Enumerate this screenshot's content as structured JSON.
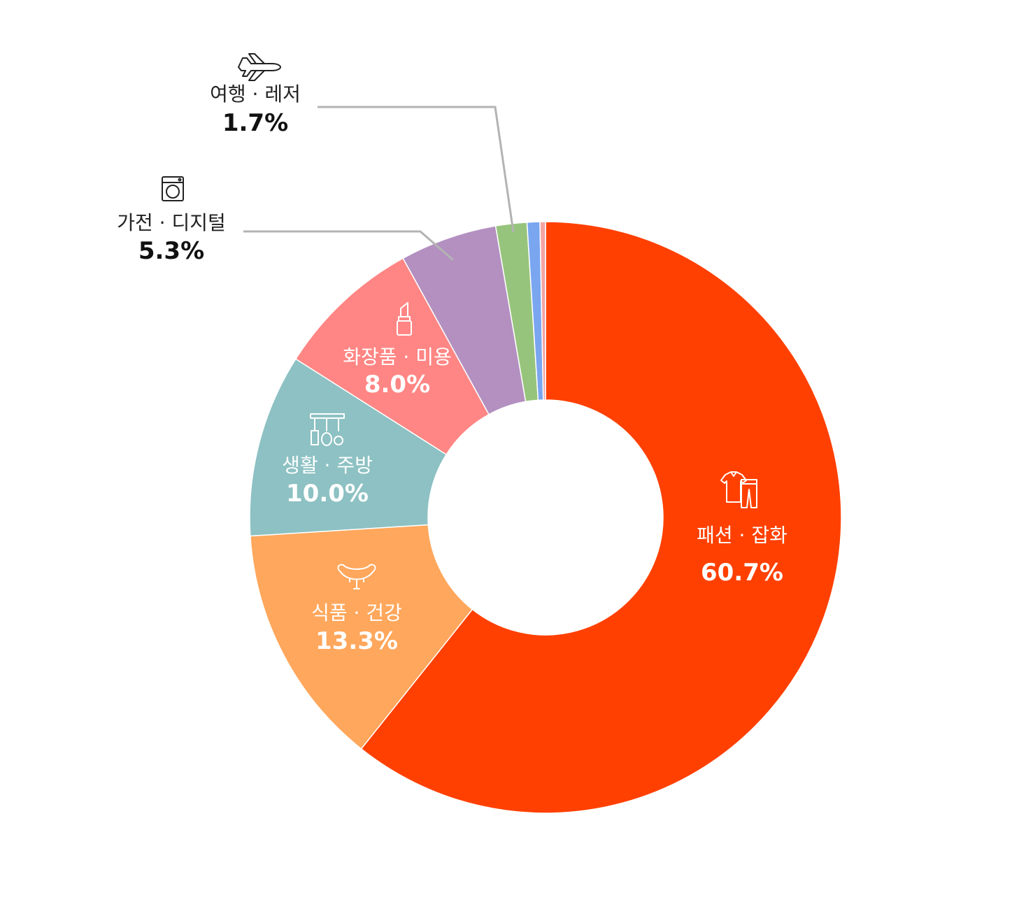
{
  "chart_data": {
    "type": "pie",
    "donut": true,
    "title": "",
    "categories": [
      "패션 · 잡화",
      "식품 · 건강",
      "생활 · 주방",
      "화장품 · 미용",
      "가전 · 디지털",
      "여행 · 레저",
      "",
      ""
    ],
    "values": [
      60.7,
      13.3,
      10.0,
      8.0,
      5.3,
      1.7,
      0.7,
      0.3
    ],
    "labels": [
      "60.7%",
      "13.3%",
      "10.0%",
      "8.0%",
      "5.3%",
      "1.7%",
      "",
      ""
    ],
    "colors": [
      "#FF4000",
      "#FFA75C",
      "#8DC1C3",
      "#FF8684",
      "#B390C0",
      "#97C47C",
      "#7AA6F0",
      "#F3A4A4"
    ],
    "icons": [
      "clothing-icon",
      "sausage-icon",
      "kitchen-utensils-icon",
      "lipstick-icon",
      "washing-machine-icon",
      "airplane-icon",
      "",
      ""
    ],
    "legend": "none"
  }
}
